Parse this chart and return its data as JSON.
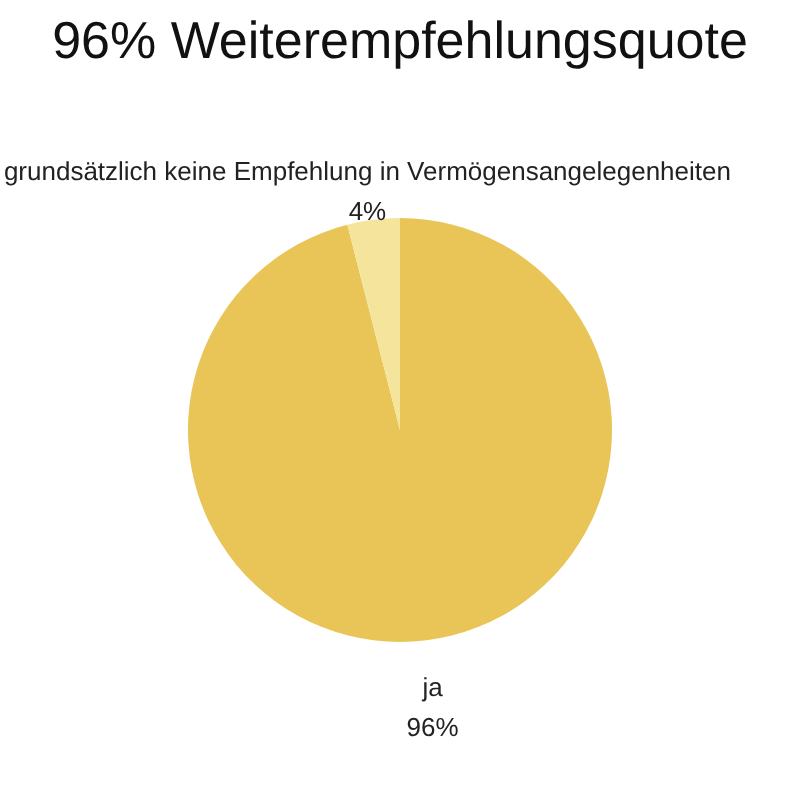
{
  "chart_data": {
    "type": "pie",
    "title": "96% Weiterempfehlungsquote",
    "categories": [
      "ja",
      "grundsätzlich keine Empfehlung in Vermögensangelegenheiten"
    ],
    "values": [
      96,
      4
    ],
    "colors": [
      "#e8c556",
      "#f5e49c"
    ],
    "value_labels": [
      "96%",
      "4%"
    ],
    "legend": false
  }
}
